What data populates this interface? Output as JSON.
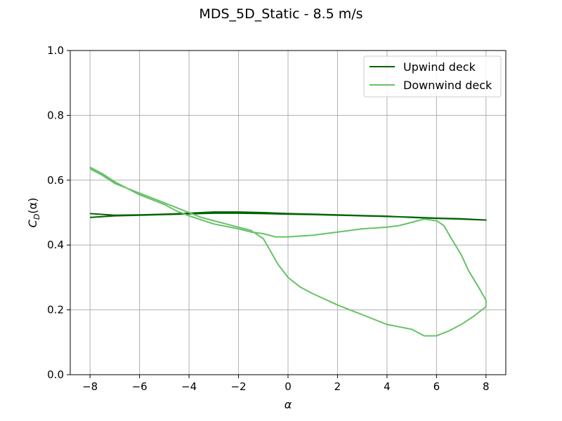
{
  "chart_data": {
    "type": "line",
    "title": "MDS_5D_Static - 8.5 m/s",
    "xlabel": "α",
    "ylabel_main": "C",
    "ylabel_sub": "D",
    "ylabel_tail": "(α)",
    "xlim": [
      -8.8,
      8.8
    ],
    "ylim": [
      0.0,
      1.0
    ],
    "xticks": [
      -8,
      -6,
      -4,
      -2,
      0,
      2,
      4,
      6,
      8
    ],
    "xtick_labels": [
      "−8",
      "−6",
      "−4",
      "−2",
      "0",
      "2",
      "4",
      "6",
      "8"
    ],
    "yticks": [
      0.0,
      0.2,
      0.4,
      0.6,
      0.8,
      1.0
    ],
    "ytick_labels": [
      "0.0",
      "0.2",
      "0.4",
      "0.6",
      "0.8",
      "1.0"
    ],
    "grid": true,
    "legend_position": "top-right",
    "series": [
      {
        "name": "Upwind deck",
        "color": "#006400",
        "points": [
          [
            -8,
            0.485
          ],
          [
            -7,
            0.49
          ],
          [
            -6,
            0.492
          ],
          [
            -5,
            0.494
          ],
          [
            -4,
            0.496
          ],
          [
            -3,
            0.498
          ],
          [
            -2,
            0.498
          ],
          [
            -1,
            0.497
          ],
          [
            0,
            0.495
          ],
          [
            1,
            0.494
          ],
          [
            2,
            0.492
          ],
          [
            3,
            0.49
          ],
          [
            4,
            0.488
          ],
          [
            5,
            0.486
          ],
          [
            6,
            0.483
          ],
          [
            7,
            0.481
          ],
          [
            8,
            0.477
          ],
          [
            7,
            0.48
          ],
          [
            6,
            0.482
          ],
          [
            5,
            0.485
          ],
          [
            4,
            0.489
          ],
          [
            3,
            0.491
          ],
          [
            2,
            0.493
          ],
          [
            1,
            0.495
          ],
          [
            0,
            0.497
          ],
          [
            -1,
            0.5
          ],
          [
            -2,
            0.502
          ],
          [
            -3,
            0.502
          ],
          [
            -4,
            0.498
          ],
          [
            -5,
            0.495
          ],
          [
            -6,
            0.493
          ],
          [
            -7,
            0.492
          ],
          [
            -8,
            0.497
          ]
        ]
      },
      {
        "name": "Downwind deck",
        "color": "#66c266",
        "points": [
          [
            -8,
            0.64
          ],
          [
            -7.5,
            0.62
          ],
          [
            -7,
            0.595
          ],
          [
            -6.5,
            0.575
          ],
          [
            -6,
            0.56
          ],
          [
            -5.5,
            0.545
          ],
          [
            -5,
            0.53
          ],
          [
            -4.5,
            0.515
          ],
          [
            -4,
            0.5
          ],
          [
            -3.5,
            0.485
          ],
          [
            -3,
            0.475
          ],
          [
            -2.5,
            0.465
          ],
          [
            -2,
            0.455
          ],
          [
            -1.5,
            0.445
          ],
          [
            -1,
            0.42
          ],
          [
            -0.7,
            0.38
          ],
          [
            -0.4,
            0.34
          ],
          [
            0,
            0.3
          ],
          [
            0.5,
            0.27
          ],
          [
            1,
            0.25
          ],
          [
            2,
            0.215
          ],
          [
            3,
            0.185
          ],
          [
            4,
            0.155
          ],
          [
            5,
            0.14
          ],
          [
            5.5,
            0.12
          ],
          [
            6,
            0.12
          ],
          [
            6.5,
            0.135
          ],
          [
            7,
            0.155
          ],
          [
            7.5,
            0.18
          ],
          [
            8,
            0.21
          ],
          [
            8,
            0.23
          ],
          [
            7.7,
            0.27
          ],
          [
            7.3,
            0.32
          ],
          [
            7,
            0.37
          ],
          [
            6.6,
            0.42
          ],
          [
            6.3,
            0.46
          ],
          [
            6,
            0.475
          ],
          [
            5.5,
            0.48
          ],
          [
            5,
            0.47
          ],
          [
            4.5,
            0.46
          ],
          [
            4,
            0.455
          ],
          [
            3,
            0.45
          ],
          [
            2,
            0.44
          ],
          [
            1,
            0.43
          ],
          [
            0,
            0.425
          ],
          [
            -0.5,
            0.425
          ],
          [
            -1,
            0.435
          ],
          [
            -1.5,
            0.44
          ],
          [
            -2,
            0.45
          ],
          [
            -3,
            0.465
          ],
          [
            -4,
            0.49
          ],
          [
            -4.5,
            0.505
          ],
          [
            -5,
            0.525
          ],
          [
            -5.5,
            0.54
          ],
          [
            -6,
            0.555
          ],
          [
            -6.5,
            0.575
          ],
          [
            -7,
            0.59
          ],
          [
            -7.5,
            0.615
          ],
          [
            -8,
            0.635
          ]
        ]
      }
    ]
  }
}
